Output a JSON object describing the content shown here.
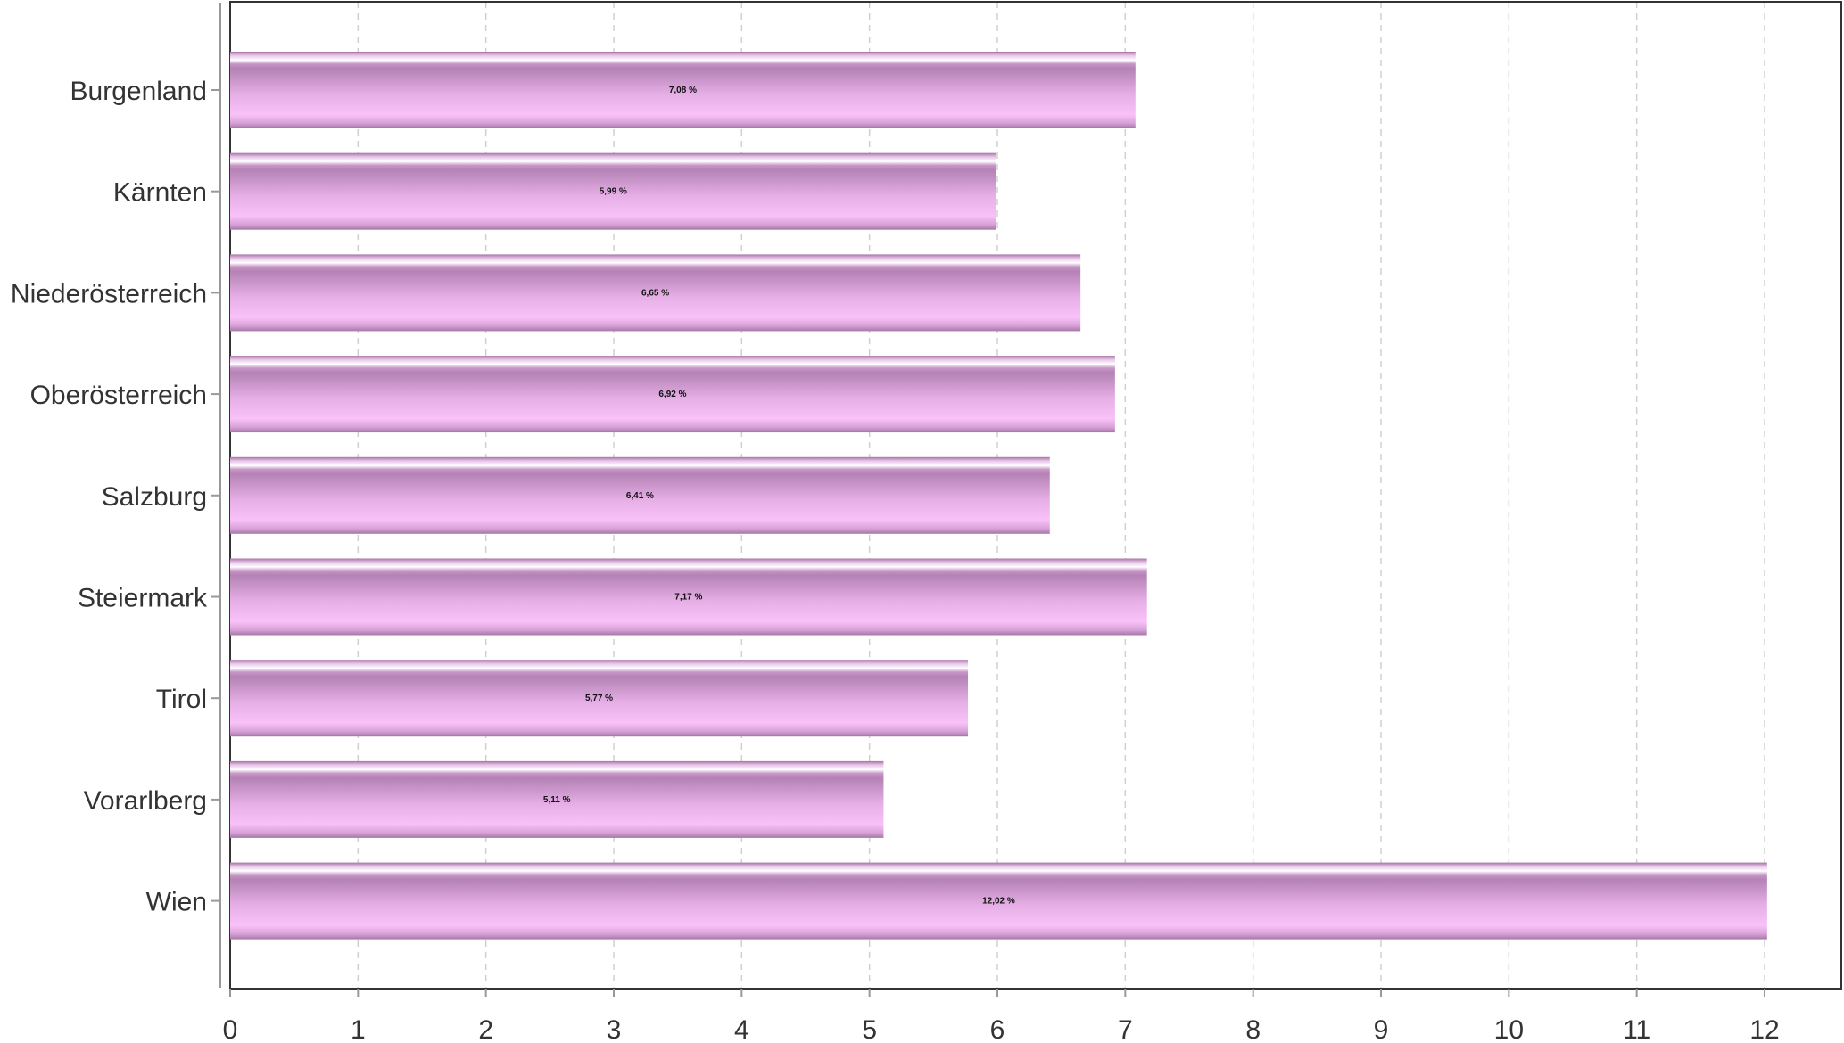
{
  "chart_data": {
    "type": "bar",
    "orientation": "horizontal",
    "categories": [
      "Burgenland",
      "Kärnten",
      "Niederösterreich",
      "Oberösterreich",
      "Salzburg",
      "Steiermark",
      "Tirol",
      "Vorarlberg",
      "Wien"
    ],
    "values": [
      7.08,
      5.99,
      6.65,
      6.92,
      6.41,
      7.17,
      5.77,
      5.11,
      12.02
    ],
    "value_labels": [
      "7,08 %",
      "5,99 %",
      "6,65 %",
      "6,92 %",
      "6,41 %",
      "7,17 %",
      "5,77 %",
      "5,11 %",
      "12,02 %"
    ],
    "x_ticks": [
      "0",
      "1",
      "2",
      "3",
      "4",
      "5",
      "6",
      "7",
      "8",
      "9",
      "10",
      "11",
      "12"
    ],
    "xlim": [
      0,
      12.6
    ],
    "grid": "vertical dashed",
    "bar_colors": {
      "light": "#f7bdf7",
      "mid": "#d79fd7",
      "dark": "#a070a0",
      "highlight": "#ffffff"
    },
    "title": "",
    "xlabel": "",
    "ylabel": ""
  }
}
